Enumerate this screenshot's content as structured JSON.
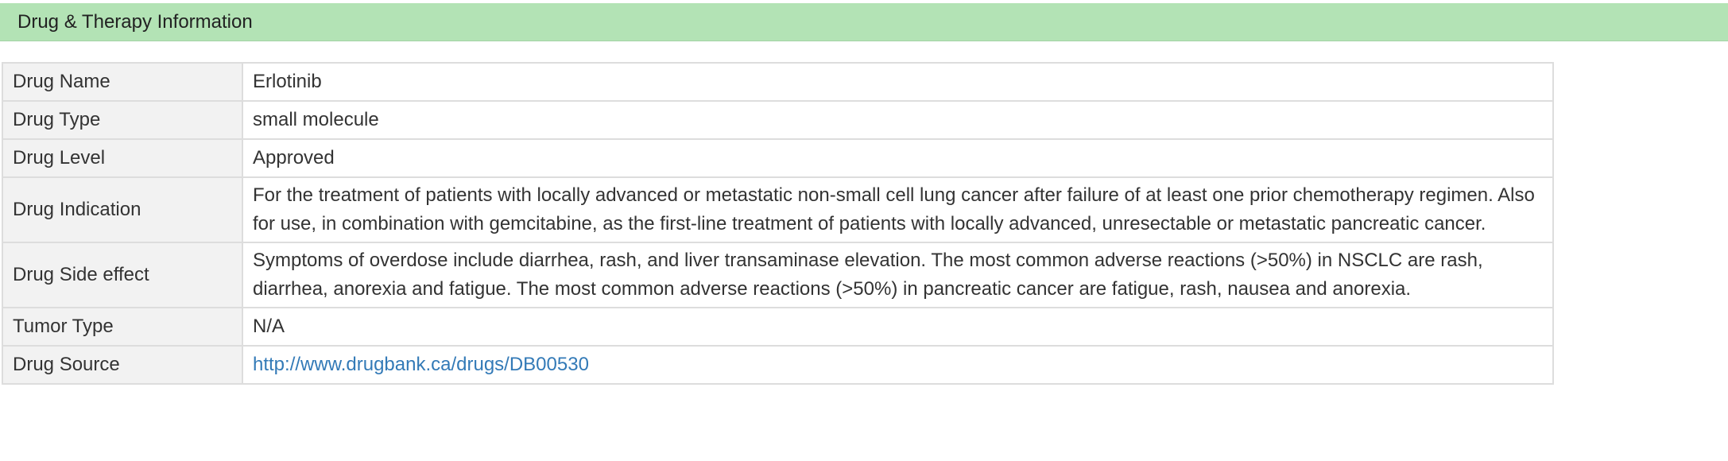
{
  "section": {
    "title": "Drug & Therapy Information"
  },
  "rows": [
    {
      "label": "Drug Name",
      "value": "Erlotinib"
    },
    {
      "label": "Drug Type",
      "value": "small molecule"
    },
    {
      "label": "Drug Level",
      "value": "Approved"
    },
    {
      "label": "Drug Indication",
      "value": "For the treatment of patients with locally advanced or metastatic non-small cell lung cancer after failure of at least one prior chemotherapy regimen. Also for use, in combination with gemcitabine, as the first-line treatment of patients with locally advanced, unresectable or metastatic pancreatic cancer."
    },
    {
      "label": "Drug Side effect",
      "value": "Symptoms of overdose include diarrhea, rash, and liver transaminase elevation. The most common adverse reactions (>50%) in NSCLC are rash, diarrhea, anorexia and fatigue. The most common adverse reactions (>50%) in pancreatic cancer are fatigue, rash, nausea and anorexia."
    },
    {
      "label": "Tumor Type",
      "value": "N/A"
    },
    {
      "label": "Drug Source",
      "value": "http://www.drugbank.ca/drugs/DB00530"
    }
  ],
  "colors": {
    "header_bg": "#b3e3b5",
    "label_bg": "#f2f2f2",
    "border": "#dddddd",
    "link": "#337ab7"
  }
}
